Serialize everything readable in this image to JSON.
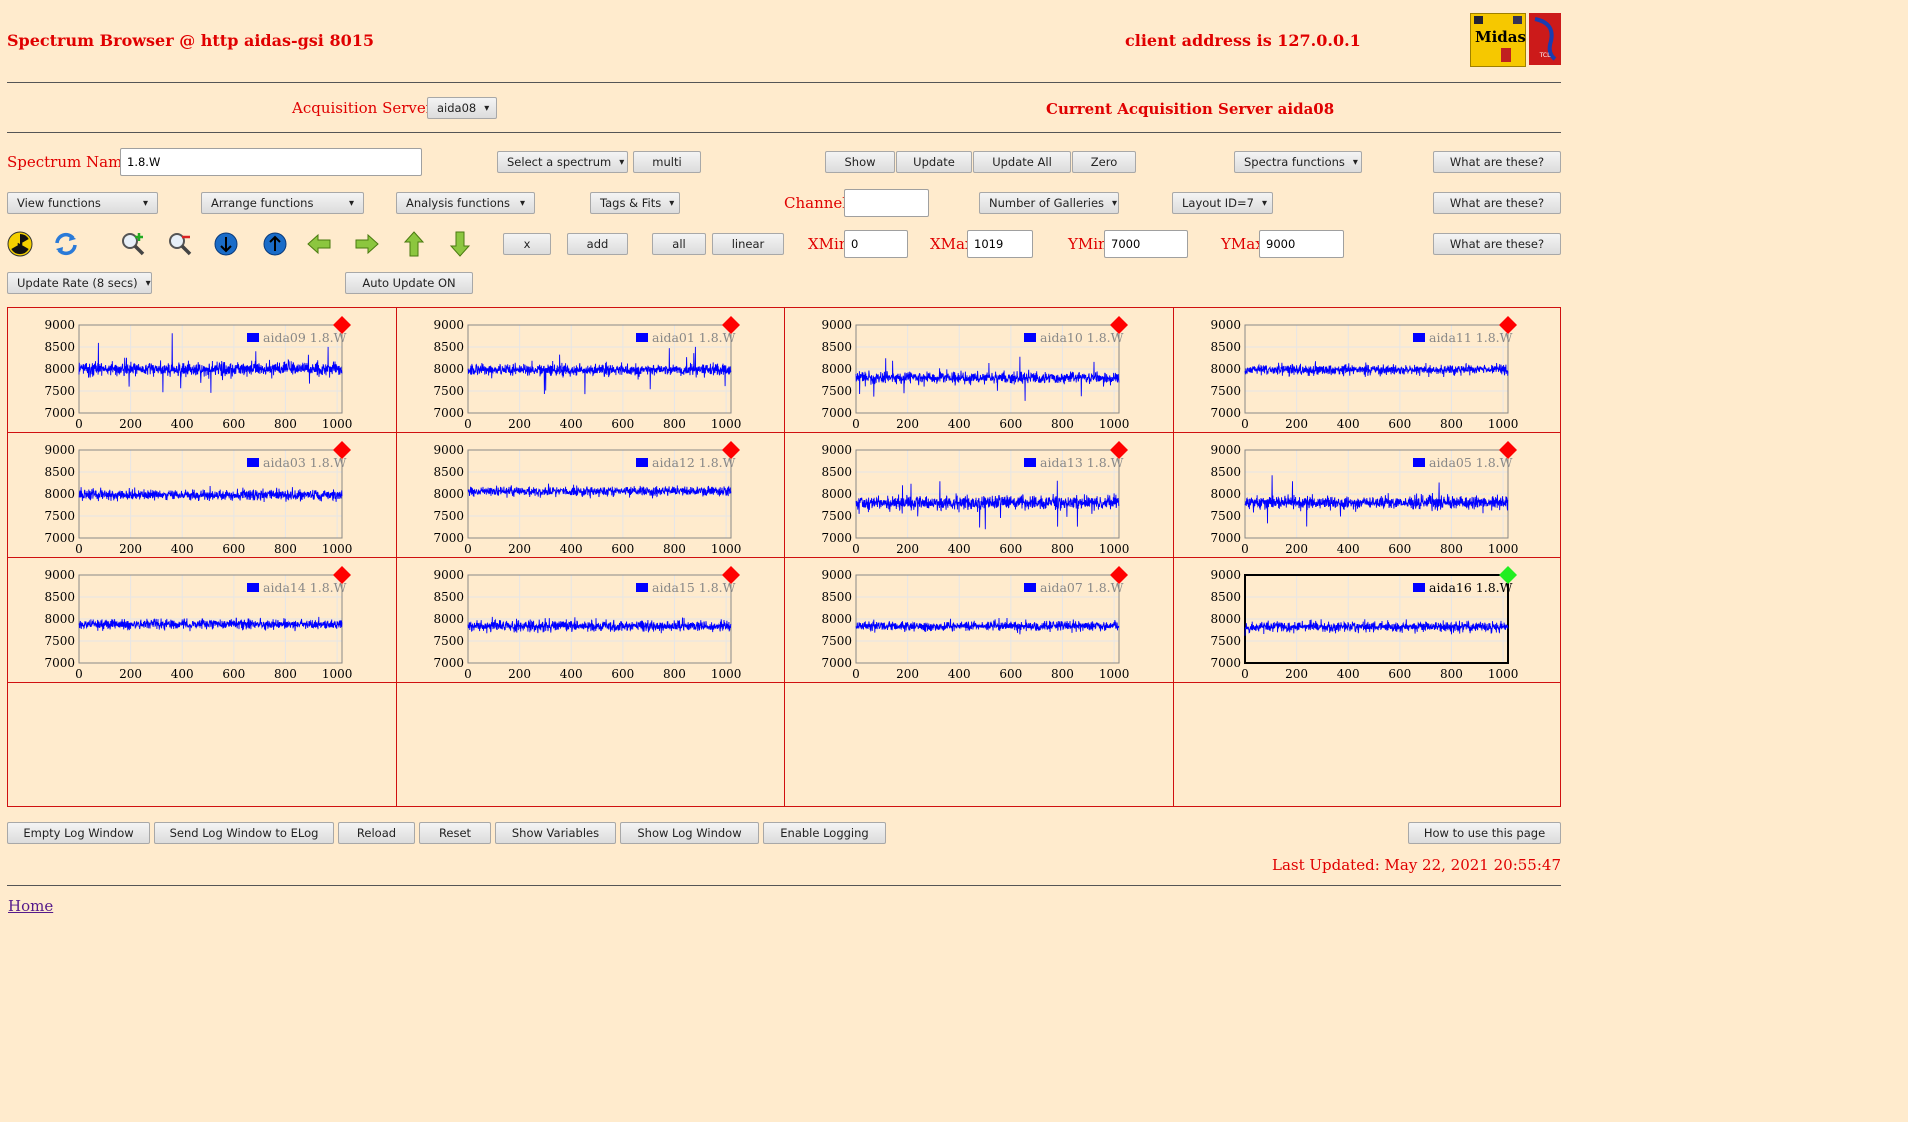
{
  "header": {
    "title": "Spectrum Browser @ http aidas-gsi 8015",
    "client_address": "client address is 127.0.0.1",
    "logo_midas_text": "Midas",
    "logo_tcl_text": "TCL POWERED"
  },
  "acq": {
    "servers_label": "Acquisition Servers",
    "server_value": "aida08",
    "current_label": "Current Acquisition Server aida08"
  },
  "row1": {
    "spectrum_name_label": "Spectrum Name:",
    "spectrum_name_value": "1.8.W",
    "select_spectrum": "Select a spectrum",
    "multi": "multi",
    "show": "Show",
    "update": "Update",
    "update_all": "Update All",
    "zero": "Zero",
    "spectra_functions": "Spectra functions",
    "what": "What are these?"
  },
  "row2": {
    "view_functions": "View functions",
    "arrange_functions": "Arrange functions",
    "analysis_functions": "Analysis functions",
    "tags_fits": "Tags & Fits",
    "channel_label": "Channel:",
    "channel_value": "",
    "galleries": "Number of Galleries",
    "layout": "Layout ID=7",
    "what": "What are these?"
  },
  "row3": {
    "icons": [
      "radiation-icon",
      "refresh-icon",
      "zoom-in-icon",
      "zoom-out-icon",
      "scroll-down-icon",
      "scroll-up-icon",
      "arrow-left-icon",
      "arrow-right-icon",
      "arrow-up-icon",
      "arrow-down-icon"
    ],
    "x": "x",
    "add": "add",
    "all": "all",
    "linear": "linear",
    "xmin_label": "XMin",
    "xmin_value": "0",
    "xmax_label": "XMax",
    "xmax_value": "1019",
    "ymin_label": "YMin",
    "ymin_value": "7000",
    "ymax_label": "YMax",
    "ymax_value": "9000",
    "what": "What are these?"
  },
  "row4": {
    "update_rate": "Update Rate (8 secs)",
    "auto_update": "Auto Update ON"
  },
  "chart_data": [
    {
      "type": "line",
      "series": [
        {
          "name": "aida09 1.8.W",
          "mean": 8000,
          "noise": 110,
          "spikes": true
        }
      ],
      "xlim": [
        0,
        1019
      ],
      "ylim": [
        7000,
        9000
      ],
      "xticks": [
        0,
        200,
        400,
        600,
        800,
        1000
      ],
      "yticks": [
        7000,
        7500,
        8000,
        8500,
        9000
      ],
      "status": "red",
      "selected": false
    },
    {
      "type": "line",
      "series": [
        {
          "name": "aida01 1.8.W",
          "mean": 7980,
          "noise": 90,
          "spikes": true
        }
      ],
      "xlim": [
        0,
        1019
      ],
      "ylim": [
        7000,
        9000
      ],
      "xticks": [
        0,
        200,
        400,
        600,
        800,
        1000
      ],
      "yticks": [
        7000,
        7500,
        8000,
        8500,
        9000
      ],
      "status": "red",
      "selected": false
    },
    {
      "type": "line",
      "series": [
        {
          "name": "aida10 1.8.W",
          "mean": 7800,
          "noise": 90,
          "spikes": true
        }
      ],
      "xlim": [
        0,
        1019
      ],
      "ylim": [
        7000,
        9000
      ],
      "xticks": [
        0,
        200,
        400,
        600,
        800,
        1000
      ],
      "yticks": [
        7000,
        7500,
        8000,
        8500,
        9000
      ],
      "status": "red",
      "selected": false
    },
    {
      "type": "line",
      "series": [
        {
          "name": "aida11 1.8.W",
          "mean": 7980,
          "noise": 80,
          "spikes": false
        }
      ],
      "xlim": [
        0,
        1019
      ],
      "ylim": [
        7000,
        9000
      ],
      "xticks": [
        0,
        200,
        400,
        600,
        800,
        1000
      ],
      "yticks": [
        7000,
        7500,
        8000,
        8500,
        9000
      ],
      "status": "red",
      "selected": false
    },
    {
      "type": "line",
      "series": [
        {
          "name": "aida03 1.8.W",
          "mean": 7980,
          "noise": 85,
          "spikes": false
        }
      ],
      "xlim": [
        0,
        1019
      ],
      "ylim": [
        7000,
        9000
      ],
      "xticks": [
        0,
        200,
        400,
        600,
        800,
        1000
      ],
      "yticks": [
        7000,
        7500,
        8000,
        8500,
        9000
      ],
      "status": "red",
      "selected": false
    },
    {
      "type": "line",
      "series": [
        {
          "name": "aida12 1.8.W",
          "mean": 8060,
          "noise": 75,
          "spikes": false
        }
      ],
      "xlim": [
        0,
        1019
      ],
      "ylim": [
        7000,
        9000
      ],
      "xticks": [
        0,
        200,
        400,
        600,
        800,
        1000
      ],
      "yticks": [
        7000,
        7500,
        8000,
        8500,
        9000
      ],
      "status": "red",
      "selected": false
    },
    {
      "type": "line",
      "series": [
        {
          "name": "aida13 1.8.W",
          "mean": 7800,
          "noise": 110,
          "spikes": true
        }
      ],
      "xlim": [
        0,
        1019
      ],
      "ylim": [
        7000,
        9000
      ],
      "xticks": [
        0,
        200,
        400,
        600,
        800,
        1000
      ],
      "yticks": [
        7000,
        7500,
        8000,
        8500,
        9000
      ],
      "status": "red",
      "selected": false
    },
    {
      "type": "line",
      "series": [
        {
          "name": "aida05 1.8.W",
          "mean": 7800,
          "noise": 100,
          "spikes": true
        }
      ],
      "xlim": [
        0,
        1019
      ],
      "ylim": [
        7000,
        9000
      ],
      "xticks": [
        0,
        200,
        400,
        600,
        800,
        1000
      ],
      "yticks": [
        7000,
        7500,
        8000,
        8500,
        9000
      ],
      "status": "red",
      "selected": false
    },
    {
      "type": "line",
      "series": [
        {
          "name": "aida14 1.8.W",
          "mean": 7880,
          "noise": 80,
          "spikes": false
        }
      ],
      "xlim": [
        0,
        1019
      ],
      "ylim": [
        7000,
        9000
      ],
      "xticks": [
        0,
        200,
        400,
        600,
        800,
        1000
      ],
      "yticks": [
        7000,
        7500,
        8000,
        8500,
        9000
      ],
      "status": "red",
      "selected": false
    },
    {
      "type": "line",
      "series": [
        {
          "name": "aida15 1.8.W",
          "mean": 7840,
          "noise": 85,
          "spikes": false
        }
      ],
      "xlim": [
        0,
        1019
      ],
      "ylim": [
        7000,
        9000
      ],
      "xticks": [
        0,
        200,
        400,
        600,
        800,
        1000
      ],
      "yticks": [
        7000,
        7500,
        8000,
        8500,
        9000
      ],
      "status": "red",
      "selected": false
    },
    {
      "type": "line",
      "series": [
        {
          "name": "aida07 1.8.W",
          "mean": 7840,
          "noise": 75,
          "spikes": false
        }
      ],
      "xlim": [
        0,
        1019
      ],
      "ylim": [
        7000,
        9000
      ],
      "xticks": [
        0,
        200,
        400,
        600,
        800,
        1000
      ],
      "yticks": [
        7000,
        7500,
        8000,
        8500,
        9000
      ],
      "status": "red",
      "selected": false
    },
    {
      "type": "line",
      "series": [
        {
          "name": "aida16 1.8.W",
          "mean": 7820,
          "noise": 80,
          "spikes": false
        }
      ],
      "xlim": [
        0,
        1019
      ],
      "ylim": [
        7000,
        9000
      ],
      "xticks": [
        0,
        200,
        400,
        600,
        800,
        1000
      ],
      "yticks": [
        7000,
        7500,
        8000,
        8500,
        9000
      ],
      "status": "green",
      "selected": true
    }
  ],
  "colors": {
    "background": "#ffebcd",
    "accent_red": "#e00000",
    "series": "#0000ff",
    "status_red": "#ff0000",
    "status_green": "#22ee22"
  },
  "footer": {
    "empty_log": "Empty Log Window",
    "send_log": "Send Log Window to ELog",
    "reload": "Reload",
    "reset": "Reset",
    "show_vars": "Show Variables",
    "show_log": "Show Log Window",
    "enable_logging": "Enable Logging",
    "how_to": "How to use this page",
    "last_updated": "Last Updated: May 22, 2021 20:55:47",
    "home": "Home"
  }
}
